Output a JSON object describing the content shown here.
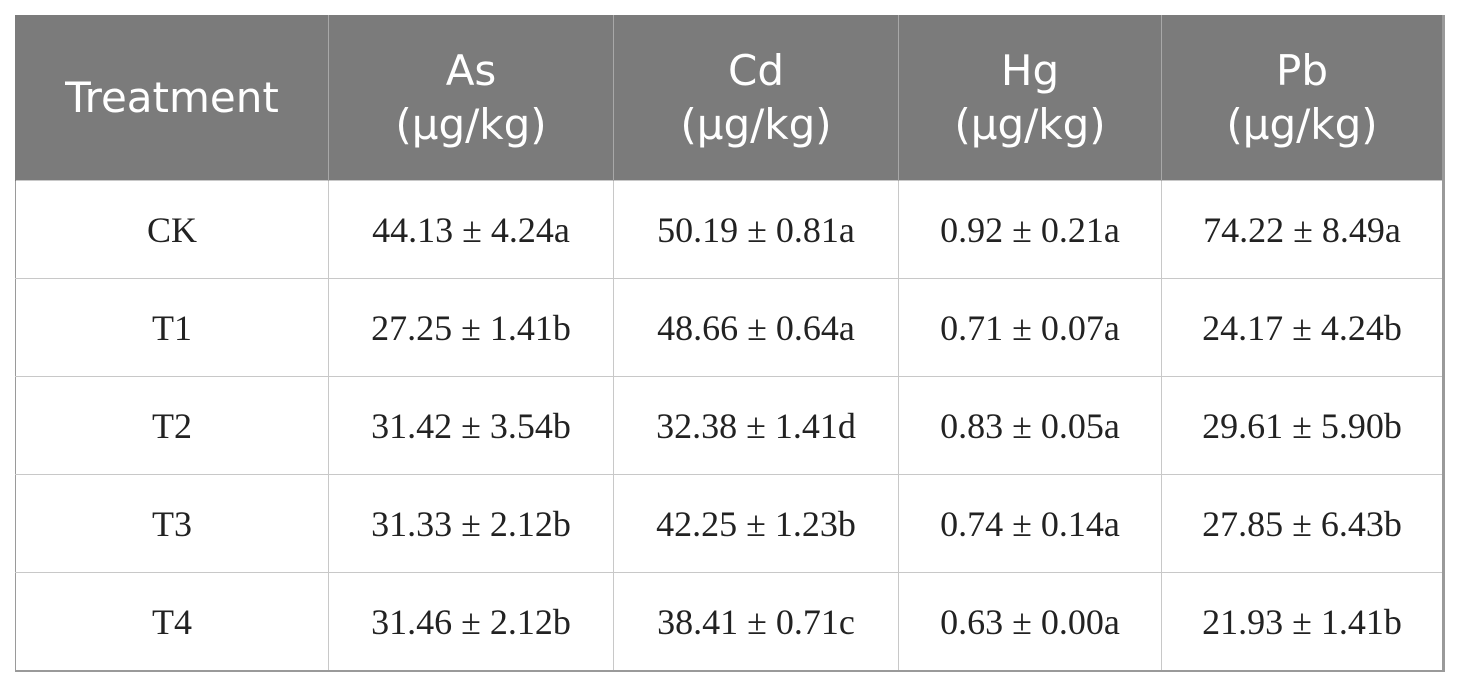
{
  "table": {
    "header": [
      [
        "Treatment"
      ],
      [
        "As",
        "(μg/kg)"
      ],
      [
        "Cd",
        "(μg/kg)"
      ],
      [
        "Hg",
        "(μg/kg)"
      ],
      [
        "Pb",
        "(μg/kg)"
      ]
    ],
    "rows": [
      [
        "CK",
        "44.13 ± 4.24a",
        "50.19 ± 0.81a",
        "0.92 ± 0.21a",
        "74.22 ± 8.49a"
      ],
      [
        "T1",
        "27.25 ± 1.41b",
        "48.66 ± 0.64a",
        "0.71 ± 0.07a",
        "24.17 ± 4.24b"
      ],
      [
        "T2",
        "31.42 ± 3.54b",
        "32.38 ± 1.41d",
        "0.83 ± 0.05a",
        "29.61 ± 5.90b"
      ],
      [
        "T3",
        "31.33 ± 2.12b",
        "42.25 ± 1.23b",
        "0.74 ± 0.14a",
        "27.85 ± 6.43b"
      ],
      [
        "T4",
        "31.46 ± 2.12b",
        "38.41 ± 0.71c",
        "0.63 ± 0.00a",
        "21.93 ± 1.41b"
      ]
    ]
  }
}
